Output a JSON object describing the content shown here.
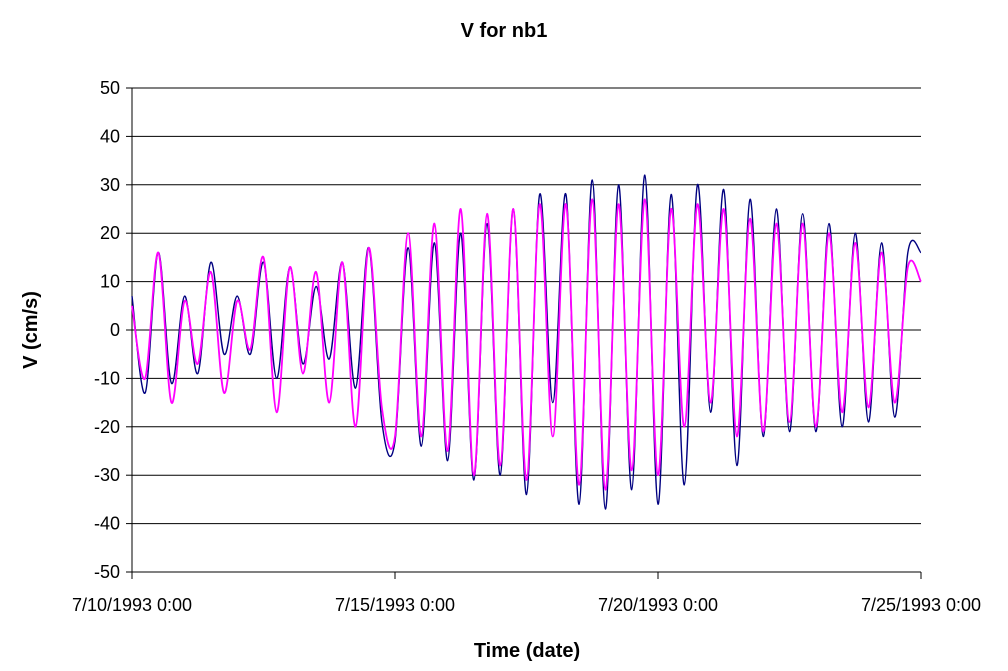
{
  "chart_data": {
    "type": "line",
    "title": "V for nb1",
    "xlabel": "Time (date)",
    "ylabel": "V (cm/s)",
    "ylim": [
      -50,
      50
    ],
    "yticks": [
      -50,
      -40,
      -30,
      -20,
      -10,
      0,
      10,
      20,
      30,
      40,
      50
    ],
    "xlim": [
      "1993-07-10",
      "1993-07-25"
    ],
    "xticks": [
      {
        "date": "1993-07-10",
        "label": "7/10/1993 0:00"
      },
      {
        "date": "1993-07-15",
        "label": "7/15/1993 0:00"
      },
      {
        "date": "1993-07-20",
        "label": "7/20/1993 0:00"
      },
      {
        "date": "1993-07-25",
        "label": "7/25/1993 0:00"
      }
    ],
    "grid": "horizontal",
    "legend": "none",
    "series": [
      {
        "color": "#000080",
        "x": [
          "1993-07-10 00:00",
          "1993-07-10 06:00",
          "1993-07-10 12:00",
          "1993-07-10 18:00",
          "1993-07-11 00:00",
          "1993-07-11 06:00",
          "1993-07-11 12:00",
          "1993-07-11 18:00",
          "1993-07-12 00:00",
          "1993-07-12 06:00",
          "1993-07-12 12:00",
          "1993-07-12 18:00",
          "1993-07-13 00:00",
          "1993-07-13 06:00",
          "1993-07-13 12:00",
          "1993-07-13 18:00",
          "1993-07-14 00:00",
          "1993-07-14 06:00",
          "1993-07-14 12:00",
          "1993-07-14 18:00",
          "1993-07-15 00:00",
          "1993-07-15 06:00",
          "1993-07-15 12:00",
          "1993-07-15 18:00",
          "1993-07-16 00:00",
          "1993-07-16 06:00",
          "1993-07-16 12:00",
          "1993-07-16 18:00",
          "1993-07-17 00:00",
          "1993-07-17 06:00",
          "1993-07-17 12:00",
          "1993-07-17 18:00",
          "1993-07-18 00:00",
          "1993-07-18 06:00",
          "1993-07-18 12:00",
          "1993-07-18 18:00",
          "1993-07-19 00:00",
          "1993-07-19 06:00",
          "1993-07-19 12:00",
          "1993-07-19 18:00",
          "1993-07-20 00:00",
          "1993-07-20 06:00",
          "1993-07-20 12:00",
          "1993-07-20 18:00",
          "1993-07-21 00:00",
          "1993-07-21 06:00",
          "1993-07-21 12:00",
          "1993-07-21 18:00",
          "1993-07-22 00:00",
          "1993-07-22 06:00",
          "1993-07-22 12:00",
          "1993-07-22 18:00",
          "1993-07-23 00:00",
          "1993-07-23 06:00",
          "1993-07-23 12:00",
          "1993-07-23 18:00",
          "1993-07-24 00:00",
          "1993-07-24 06:00",
          "1993-07-24 12:00",
          "1993-07-24 18:00",
          "1993-07-25 00:00"
        ],
        "y": [
          7,
          -13,
          16,
          -11,
          7,
          -9,
          14,
          -5,
          7,
          -5,
          14,
          -10,
          13,
          -7,
          9,
          -6,
          14,
          -12,
          17,
          -19,
          -23,
          17,
          -24,
          18,
          -27,
          20,
          -31,
          22,
          -30,
          25,
          -34,
          28,
          -15,
          28,
          -36,
          31,
          -37,
          30,
          -33,
          32,
          -36,
          28,
          -32,
          30,
          -17,
          29,
          -28,
          27,
          -22,
          25,
          -21,
          24,
          -21,
          22,
          -20,
          20,
          -19,
          18,
          -18,
          16,
          16
        ]
      },
      {
        "color": "#ff00ff",
        "x": [
          "1993-07-10 00:00",
          "1993-07-10 06:00",
          "1993-07-10 12:00",
          "1993-07-10 18:00",
          "1993-07-11 00:00",
          "1993-07-11 06:00",
          "1993-07-11 12:00",
          "1993-07-11 18:00",
          "1993-07-12 00:00",
          "1993-07-12 06:00",
          "1993-07-12 12:00",
          "1993-07-12 18:00",
          "1993-07-13 00:00",
          "1993-07-13 06:00",
          "1993-07-13 12:00",
          "1993-07-13 18:00",
          "1993-07-14 00:00",
          "1993-07-14 06:00",
          "1993-07-14 12:00",
          "1993-07-14 18:00",
          "1993-07-15 00:00",
          "1993-07-15 06:00",
          "1993-07-15 12:00",
          "1993-07-15 18:00",
          "1993-07-16 00:00",
          "1993-07-16 06:00",
          "1993-07-16 12:00",
          "1993-07-16 18:00",
          "1993-07-17 00:00",
          "1993-07-17 06:00",
          "1993-07-17 12:00",
          "1993-07-17 18:00",
          "1993-07-18 00:00",
          "1993-07-18 06:00",
          "1993-07-18 12:00",
          "1993-07-18 18:00",
          "1993-07-19 00:00",
          "1993-07-19 06:00",
          "1993-07-19 12:00",
          "1993-07-19 18:00",
          "1993-07-20 00:00",
          "1993-07-20 06:00",
          "1993-07-20 12:00",
          "1993-07-20 18:00",
          "1993-07-21 00:00",
          "1993-07-21 06:00",
          "1993-07-21 12:00",
          "1993-07-21 18:00",
          "1993-07-22 00:00",
          "1993-07-22 06:00",
          "1993-07-22 12:00",
          "1993-07-22 18:00",
          "1993-07-23 00:00",
          "1993-07-23 06:00",
          "1993-07-23 12:00",
          "1993-07-23 18:00",
          "1993-07-24 00:00",
          "1993-07-24 06:00",
          "1993-07-24 12:00",
          "1993-07-24 18:00",
          "1993-07-25 00:00"
        ],
        "y": [
          5,
          -10,
          16,
          -15,
          6,
          -7,
          12,
          -13,
          6,
          -4,
          15,
          -17,
          13,
          -9,
          12,
          -15,
          14,
          -20,
          17,
          -16,
          -22,
          20,
          -22,
          22,
          -25,
          25,
          -30,
          24,
          -28,
          25,
          -31,
          26,
          -22,
          26,
          -32,
          27,
          -33,
          26,
          -29,
          27,
          -30,
          25,
          -20,
          26,
          -15,
          25,
          -22,
          23,
          -21,
          22,
          -19,
          22,
          -20,
          20,
          -17,
          18,
          -16,
          16,
          -15,
          13,
          10
        ]
      }
    ]
  }
}
